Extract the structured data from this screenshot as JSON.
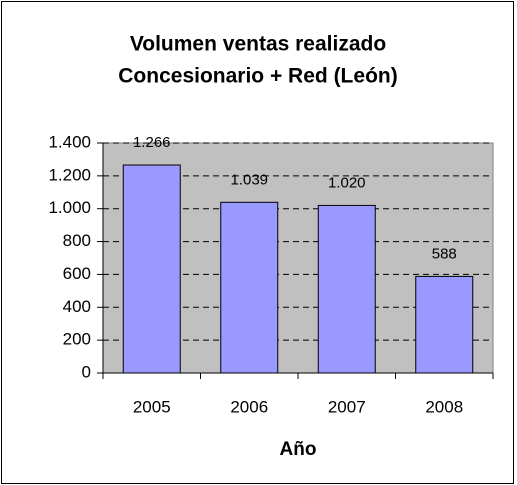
{
  "chart_data": {
    "type": "bar",
    "title": [
      "Volumen ventas realizado",
      "Concesionario + Red (León)"
    ],
    "x_label": "Año",
    "categories": [
      "2005",
      "2006",
      "2007",
      "2008"
    ],
    "values": [
      1266,
      1039,
      1020,
      588
    ],
    "value_labels": [
      "1.266",
      "1.039",
      "1.020",
      "588"
    ],
    "color": "#9999ff",
    "ylim": [
      0,
      1400
    ],
    "yticks": [
      0,
      200,
      400,
      600,
      800,
      {
        "value": 1000,
        "label": "1.000"
      },
      {
        "value": 1200,
        "label": "1.200"
      },
      {
        "value": 1400,
        "label": "1.400"
      }
    ],
    "grid": true
  }
}
